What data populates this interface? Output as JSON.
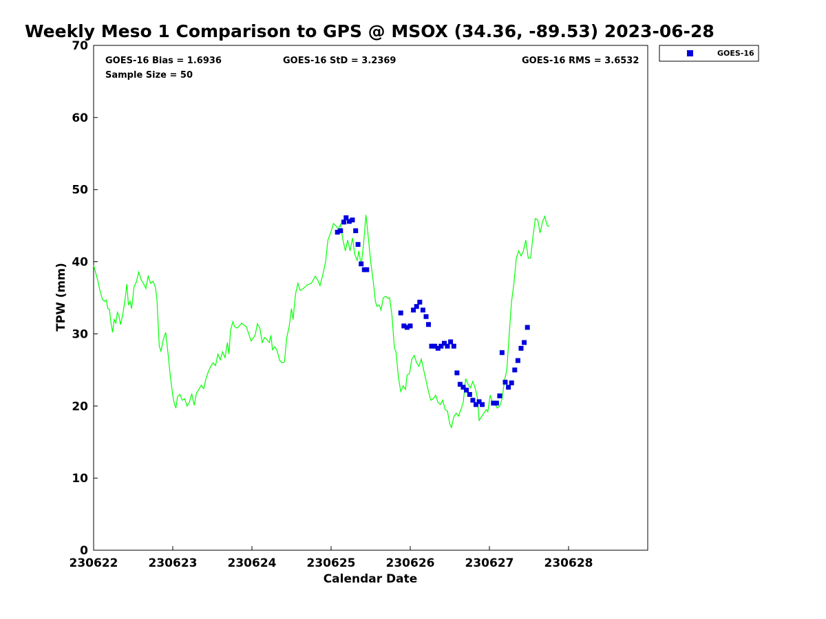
{
  "chart_data": {
    "type": "scatter",
    "title": "Weekly Meso 1 Comparison to GPS @ MSOX (34.36, -89.53) 2023-06-28",
    "xlabel": "Calendar Date",
    "ylabel": "TPW (mm)",
    "ylim": [
      0,
      70
    ],
    "xlim": [
      0,
      7
    ],
    "x_unit": "days since 230622",
    "x_ticks": [
      {
        "x": 0,
        "label": "230622"
      },
      {
        "x": 1,
        "label": "230623"
      },
      {
        "x": 2,
        "label": "230624"
      },
      {
        "x": 3,
        "label": "230625"
      },
      {
        "x": 4,
        "label": "230626"
      },
      {
        "x": 5,
        "label": "230627"
      },
      {
        "x": 6,
        "label": "230628"
      }
    ],
    "y_ticks": [
      0,
      10,
      20,
      30,
      40,
      50,
      60,
      70
    ],
    "stats": {
      "bias": "GOES-16 Bias = 1.6936",
      "std": "GOES-16 StD = 3.2369",
      "rms": "GOES-16 RMS = 3.6532",
      "sample": "Sample Size = 50"
    },
    "legend": {
      "label": "GOES-16",
      "placement": "top-right outside"
    },
    "series": [
      {
        "name": "GPS",
        "kind": "line",
        "color": "#00ff00",
        "points": [
          [
            0.0,
            39.5
          ],
          [
            0.05,
            37.5
          ],
          [
            0.08,
            36.0
          ],
          [
            0.11,
            34.8
          ],
          [
            0.14,
            34.5
          ],
          [
            0.16,
            34.7
          ],
          [
            0.18,
            33.5
          ],
          [
            0.2,
            33.4
          ],
          [
            0.22,
            31.5
          ],
          [
            0.24,
            30.2
          ],
          [
            0.26,
            32.0
          ],
          [
            0.28,
            31.5
          ],
          [
            0.3,
            33.0
          ],
          [
            0.32,
            32.5
          ],
          [
            0.34,
            31.3
          ],
          [
            0.37,
            32.8
          ],
          [
            0.4,
            35.0
          ],
          [
            0.42,
            36.9
          ],
          [
            0.44,
            34.0
          ],
          [
            0.46,
            34.5
          ],
          [
            0.48,
            33.5
          ],
          [
            0.51,
            36.5
          ],
          [
            0.54,
            37.2
          ],
          [
            0.57,
            38.6
          ],
          [
            0.6,
            37.5
          ],
          [
            0.63,
            37.0
          ],
          [
            0.66,
            36.3
          ],
          [
            0.69,
            38.0
          ],
          [
            0.72,
            37.0
          ],
          [
            0.75,
            37.3
          ],
          [
            0.78,
            36.5
          ],
          [
            0.8,
            34.8
          ],
          [
            0.83,
            28.3
          ],
          [
            0.85,
            27.6
          ],
          [
            0.88,
            29.2
          ],
          [
            0.91,
            30.2
          ],
          [
            0.94,
            27.3
          ],
          [
            0.97,
            24.0
          ],
          [
            1.0,
            21.5
          ],
          [
            1.02,
            20.3
          ],
          [
            1.04,
            19.7
          ],
          [
            1.06,
            21.3
          ],
          [
            1.09,
            21.6
          ],
          [
            1.12,
            20.8
          ],
          [
            1.15,
            21.0
          ],
          [
            1.18,
            20.0
          ],
          [
            1.21,
            20.5
          ],
          [
            1.24,
            21.7
          ],
          [
            1.27,
            20.1
          ],
          [
            1.3,
            21.8
          ],
          [
            1.33,
            22.3
          ],
          [
            1.36,
            22.9
          ],
          [
            1.39,
            22.4
          ],
          [
            1.42,
            23.8
          ],
          [
            1.45,
            24.8
          ],
          [
            1.48,
            25.5
          ],
          [
            1.51,
            26.0
          ],
          [
            1.54,
            25.6
          ],
          [
            1.57,
            27.2
          ],
          [
            1.6,
            26.4
          ],
          [
            1.63,
            27.5
          ],
          [
            1.66,
            26.7
          ],
          [
            1.69,
            28.8
          ],
          [
            1.71,
            27.2
          ],
          [
            1.73,
            30.5
          ],
          [
            1.76,
            31.7
          ],
          [
            1.78,
            31.0
          ],
          [
            1.81,
            30.8
          ],
          [
            1.84,
            31.1
          ],
          [
            1.87,
            31.5
          ],
          [
            1.9,
            31.2
          ],
          [
            1.93,
            31.0
          ],
          [
            1.96,
            30.0
          ],
          [
            1.99,
            29.0
          ],
          [
            2.02,
            29.5
          ],
          [
            2.04,
            29.8
          ],
          [
            2.07,
            31.4
          ],
          [
            2.1,
            30.8
          ],
          [
            2.13,
            28.8
          ],
          [
            2.16,
            29.5
          ],
          [
            2.19,
            29.2
          ],
          [
            2.22,
            28.8
          ],
          [
            2.24,
            29.8
          ],
          [
            2.26,
            27.8
          ],
          [
            2.29,
            28.2
          ],
          [
            2.32,
            27.6
          ],
          [
            2.35,
            26.3
          ],
          [
            2.38,
            26.0
          ],
          [
            2.41,
            26.1
          ],
          [
            2.44,
            29.5
          ],
          [
            2.47,
            31.0
          ],
          [
            2.5,
            33.5
          ],
          [
            2.52,
            32.0
          ],
          [
            2.55,
            35.5
          ],
          [
            2.58,
            37.0
          ],
          [
            2.61,
            36.0
          ],
          [
            2.65,
            36.3
          ],
          [
            2.7,
            36.8
          ],
          [
            2.75,
            37.0
          ],
          [
            2.8,
            38.0
          ],
          [
            2.83,
            37.5
          ],
          [
            2.86,
            36.7
          ],
          [
            2.9,
            38.4
          ],
          [
            2.93,
            40.0
          ],
          [
            2.96,
            43.0
          ],
          [
            3.0,
            44.2
          ],
          [
            3.03,
            45.3
          ],
          [
            3.06,
            45.0
          ],
          [
            3.09,
            44.5
          ],
          [
            3.12,
            45.2
          ],
          [
            3.15,
            43.0
          ],
          [
            3.18,
            41.5
          ],
          [
            3.21,
            43.0
          ],
          [
            3.24,
            41.5
          ],
          [
            3.27,
            43.3
          ],
          [
            3.3,
            41.0
          ],
          [
            3.33,
            40.2
          ],
          [
            3.35,
            41.5
          ],
          [
            3.38,
            39.5
          ],
          [
            3.41,
            42.5
          ],
          [
            3.44,
            46.5
          ],
          [
            3.47,
            43.5
          ],
          [
            3.5,
            40.0
          ],
          [
            3.53,
            37.5
          ],
          [
            3.56,
            34.5
          ],
          [
            3.58,
            33.8
          ],
          [
            3.61,
            34.0
          ],
          [
            3.63,
            33.3
          ],
          [
            3.66,
            35.0
          ],
          [
            3.69,
            35.2
          ],
          [
            3.72,
            34.9
          ],
          [
            3.74,
            35.0
          ],
          [
            3.77,
            32.5
          ],
          [
            3.8,
            28.0
          ],
          [
            3.82,
            27.5
          ],
          [
            3.85,
            24.0
          ],
          [
            3.88,
            22.0
          ],
          [
            3.91,
            22.8
          ],
          [
            3.94,
            22.3
          ],
          [
            3.96,
            24.3
          ],
          [
            3.99,
            24.5
          ],
          [
            4.02,
            26.5
          ],
          [
            4.05,
            27.0
          ],
          [
            4.08,
            26.0
          ],
          [
            4.11,
            25.5
          ],
          [
            4.14,
            26.5
          ],
          [
            4.17,
            25.0
          ],
          [
            4.2,
            23.5
          ],
          [
            4.23,
            22.0
          ],
          [
            4.26,
            20.8
          ],
          [
            4.29,
            21.0
          ],
          [
            4.32,
            21.5
          ],
          [
            4.35,
            20.5
          ],
          [
            4.38,
            20.2
          ],
          [
            4.41,
            20.8
          ],
          [
            4.44,
            19.5
          ],
          [
            4.47,
            19.3
          ],
          [
            4.5,
            17.5
          ],
          [
            4.52,
            17.0
          ],
          [
            4.55,
            18.5
          ],
          [
            4.58,
            19.0
          ],
          [
            4.61,
            18.6
          ],
          [
            4.64,
            19.5
          ],
          [
            4.67,
            20.5
          ],
          [
            4.7,
            23.8
          ],
          [
            4.73,
            23.0
          ],
          [
            4.76,
            22.5
          ],
          [
            4.79,
            23.4
          ],
          [
            4.82,
            22.5
          ],
          [
            4.85,
            21.0
          ],
          [
            4.87,
            18.0
          ],
          [
            4.9,
            18.5
          ],
          [
            4.93,
            19.0
          ],
          [
            4.96,
            19.5
          ],
          [
            4.98,
            19.2
          ],
          [
            5.01,
            21.5
          ],
          [
            5.04,
            20.5
          ],
          [
            5.07,
            20.3
          ],
          [
            5.1,
            19.7
          ],
          [
            5.13,
            20.0
          ],
          [
            5.16,
            21.0
          ],
          [
            5.19,
            23.5
          ],
          [
            5.22,
            25.0
          ],
          [
            5.25,
            30.0
          ],
          [
            5.28,
            34.5
          ],
          [
            5.31,
            37.0
          ],
          [
            5.34,
            40.5
          ],
          [
            5.37,
            41.5
          ],
          [
            5.4,
            40.8
          ],
          [
            5.43,
            41.5
          ],
          [
            5.46,
            43.0
          ],
          [
            5.49,
            40.5
          ],
          [
            5.52,
            40.5
          ],
          [
            5.55,
            43.5
          ],
          [
            5.58,
            46.0
          ],
          [
            5.61,
            45.8
          ],
          [
            5.64,
            44.0
          ],
          [
            5.67,
            45.5
          ],
          [
            5.7,
            46.3
          ],
          [
            5.73,
            45.0
          ],
          [
            5.76,
            44.9
          ]
        ]
      },
      {
        "name": "GOES-16",
        "kind": "marker",
        "color": "#0000dd",
        "points": [
          [
            3.08,
            44.1
          ],
          [
            3.12,
            44.3
          ],
          [
            3.16,
            45.5
          ],
          [
            3.19,
            46.1
          ],
          [
            3.23,
            45.6
          ],
          [
            3.27,
            45.8
          ],
          [
            3.31,
            44.3
          ],
          [
            3.34,
            42.4
          ],
          [
            3.38,
            39.7
          ],
          [
            3.42,
            38.9
          ],
          [
            3.45,
            38.9
          ],
          [
            3.88,
            32.9
          ],
          [
            3.92,
            31.1
          ],
          [
            3.96,
            30.9
          ],
          [
            4.0,
            31.1
          ],
          [
            4.04,
            33.3
          ],
          [
            4.08,
            33.8
          ],
          [
            4.12,
            34.4
          ],
          [
            4.16,
            33.3
          ],
          [
            4.2,
            32.4
          ],
          [
            4.23,
            31.3
          ],
          [
            4.27,
            28.3
          ],
          [
            4.31,
            28.3
          ],
          [
            4.35,
            28.0
          ],
          [
            4.39,
            28.3
          ],
          [
            4.43,
            28.7
          ],
          [
            4.47,
            28.3
          ],
          [
            4.51,
            28.9
          ],
          [
            4.55,
            28.3
          ],
          [
            4.59,
            24.6
          ],
          [
            4.63,
            23.0
          ],
          [
            4.67,
            22.6
          ],
          [
            4.71,
            22.2
          ],
          [
            4.75,
            21.6
          ],
          [
            4.79,
            20.8
          ],
          [
            4.83,
            20.2
          ],
          [
            4.87,
            20.6
          ],
          [
            4.91,
            20.2
          ],
          [
            5.05,
            20.4
          ],
          [
            5.09,
            20.4
          ],
          [
            5.13,
            21.4
          ],
          [
            5.16,
            27.4
          ],
          [
            5.2,
            23.3
          ],
          [
            5.24,
            22.6
          ],
          [
            5.28,
            23.2
          ],
          [
            5.32,
            25.0
          ],
          [
            5.36,
            26.3
          ],
          [
            5.4,
            28.0
          ],
          [
            5.44,
            28.8
          ],
          [
            5.48,
            30.9
          ]
        ]
      }
    ]
  }
}
